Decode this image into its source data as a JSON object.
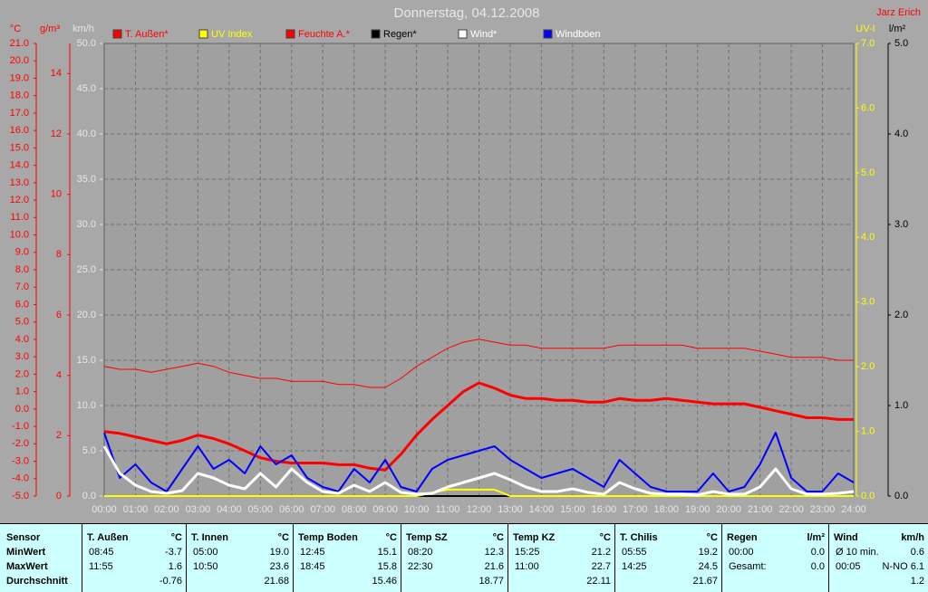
{
  "chart_data": {
    "type": "line",
    "title": "Donnerstag, 04.12.2008",
    "annotation": "Jarz Erich",
    "grid": true,
    "x": [
      0,
      0.5,
      1,
      1.5,
      2,
      2.5,
      3,
      3.5,
      4,
      4.5,
      5,
      5.5,
      6,
      6.5,
      7,
      7.5,
      8,
      8.5,
      9,
      9.5,
      10,
      10.5,
      11,
      11.5,
      12,
      12.5,
      13,
      13.5,
      14,
      14.5,
      15,
      15.5,
      16,
      16.5,
      17,
      17.5,
      18,
      18.5,
      19,
      19.5,
      20,
      20.5,
      21,
      21.5,
      22,
      22.5,
      23,
      23.5,
      24
    ],
    "xlim": [
      0,
      24
    ],
    "xticks": [
      {
        "value": 0,
        "label": "00:00"
      },
      {
        "value": 1,
        "label": "01:00"
      },
      {
        "value": 2,
        "label": "02:00"
      },
      {
        "value": 3,
        "label": "03:00"
      },
      {
        "value": 4,
        "label": "04:00"
      },
      {
        "value": 5,
        "label": "05:00"
      },
      {
        "value": 6,
        "label": "06:00"
      },
      {
        "value": 7,
        "label": "07:00"
      },
      {
        "value": 8,
        "label": "08:00"
      },
      {
        "value": 9,
        "label": "09:00"
      },
      {
        "value": 10,
        "label": "10:00"
      },
      {
        "value": 11,
        "label": "11:00"
      },
      {
        "value": 12,
        "label": "12:00"
      },
      {
        "value": 13,
        "label": "13:00"
      },
      {
        "value": 14,
        "label": "14:00"
      },
      {
        "value": 15,
        "label": "15:00"
      },
      {
        "value": 16,
        "label": "16:00"
      },
      {
        "value": 17,
        "label": "17:00"
      },
      {
        "value": 18,
        "label": "18:00"
      },
      {
        "value": 19,
        "label": "19:00"
      },
      {
        "value": 20,
        "label": "20:00"
      },
      {
        "value": 21,
        "label": "21:00"
      },
      {
        "value": 22,
        "label": "22:00"
      },
      {
        "value": 23,
        "label": "23:00"
      },
      {
        "value": 24,
        "label": "24:00"
      }
    ],
    "yaxes": [
      {
        "label": "°C",
        "color": "#ff0000",
        "side": "left",
        "ylim": [
          -5,
          21
        ],
        "yticks": [
          {
            "value": -5,
            "label": "-5.0"
          },
          {
            "value": -4,
            "label": "-4.0"
          },
          {
            "value": -3,
            "label": "-3.0"
          },
          {
            "value": -2,
            "label": "-2.0"
          },
          {
            "value": -1,
            "label": "-1.0"
          },
          {
            "value": 0,
            "label": "0.0"
          },
          {
            "value": 1,
            "label": "1.0"
          },
          {
            "value": 2,
            "label": "2.0"
          },
          {
            "value": 3,
            "label": "3.0"
          },
          {
            "value": 4,
            "label": "4.0"
          },
          {
            "value": 5,
            "label": "5.0"
          },
          {
            "value": 6,
            "label": "6.0"
          },
          {
            "value": 7,
            "label": "7.0"
          },
          {
            "value": 8,
            "label": "8.0"
          },
          {
            "value": 9,
            "label": "9.0"
          },
          {
            "value": 10,
            "label": "10.0"
          },
          {
            "value": 11,
            "label": "11.0"
          },
          {
            "value": 12,
            "label": "12.0"
          },
          {
            "value": 13,
            "label": "13.0"
          },
          {
            "value": 14,
            "label": "14.0"
          },
          {
            "value": 15,
            "label": "15.0"
          },
          {
            "value": 16,
            "label": "16.0"
          },
          {
            "value": 17,
            "label": "17.0"
          },
          {
            "value": 18,
            "label": "18.0"
          },
          {
            "value": 19,
            "label": "19.0"
          },
          {
            "value": 20,
            "label": "20.0"
          },
          {
            "value": 21,
            "label": "21.0"
          }
        ]
      },
      {
        "label": "g/m³",
        "color": "#ff0000",
        "side": "left",
        "ylim": [
          0,
          15
        ],
        "yticks": [
          0,
          2,
          4,
          6,
          8,
          10,
          12,
          14
        ]
      },
      {
        "label": "km/h",
        "color": "#e8e8e8",
        "side": "left",
        "ylim": [
          0,
          50
        ],
        "yticks": [
          {
            "value": 0,
            "label": "0.0"
          },
          {
            "value": 5,
            "label": "5.0"
          },
          {
            "value": 10,
            "label": "10.0"
          },
          {
            "value": 15,
            "label": "15.0"
          },
          {
            "value": 20,
            "label": "20.0"
          },
          {
            "value": 25,
            "label": "25.0"
          },
          {
            "value": 30,
            "label": "30.0"
          },
          {
            "value": 35,
            "label": "35.0"
          },
          {
            "value": 40,
            "label": "40.0"
          },
          {
            "value": 45,
            "label": "45.0"
          },
          {
            "value": 50,
            "label": "50.0"
          }
        ]
      },
      {
        "label": "UV-I",
        "color": "#ffff00",
        "side": "right",
        "ylim": [
          0,
          7
        ],
        "yticks": [
          {
            "value": 0,
            "label": "0.0"
          },
          {
            "value": 1,
            "label": "1.0"
          },
          {
            "value": 2,
            "label": "2.0"
          },
          {
            "value": 3,
            "label": "3.0"
          },
          {
            "value": 4,
            "label": "4.0"
          },
          {
            "value": 5,
            "label": "5.0"
          },
          {
            "value": 6,
            "label": "6.0"
          },
          {
            "value": 7,
            "label": "7.0"
          }
        ]
      },
      {
        "label": "l/m²",
        "color": "#000000",
        "side": "right",
        "ylim": [
          0,
          5
        ],
        "yticks": [
          {
            "value": 0,
            "label": "0.0"
          },
          {
            "value": 1,
            "label": "1.0"
          },
          {
            "value": 2,
            "label": "2.0"
          },
          {
            "value": 3,
            "label": "3.0"
          },
          {
            "value": 4,
            "label": "4.0"
          },
          {
            "value": 5,
            "label": "5.0"
          }
        ]
      }
    ],
    "series": [
      {
        "name": "T. Außen*",
        "color": "#ff0000",
        "axis": "°C",
        "line_width": 3,
        "values": [
          -1.3,
          -1.4,
          -1.6,
          -1.8,
          -2.0,
          -1.8,
          -1.5,
          -1.7,
          -2.0,
          -2.4,
          -2.8,
          -3.0,
          -3.1,
          -3.1,
          -3.1,
          -3.2,
          -3.2,
          -3.4,
          -3.5,
          -2.6,
          -1.5,
          -0.6,
          0.2,
          1.0,
          1.5,
          1.2,
          0.8,
          0.6,
          0.6,
          0.5,
          0.5,
          0.4,
          0.4,
          0.6,
          0.5,
          0.5,
          0.6,
          0.5,
          0.4,
          0.3,
          0.3,
          0.3,
          0.1,
          -0.1,
          -0.3,
          -0.5,
          -0.5,
          -0.6,
          -0.6
        ]
      },
      {
        "name": "UV Index",
        "color": "#ffff00",
        "axis": "UV-I",
        "line_width": 2,
        "values": [
          0,
          0,
          0,
          0,
          0,
          0,
          0,
          0,
          0,
          0,
          0,
          0,
          0,
          0,
          0,
          0,
          0,
          0,
          0,
          0,
          0,
          0.05,
          0.1,
          0.1,
          0.1,
          0.1,
          0,
          0,
          0,
          0,
          0,
          0,
          0,
          0,
          0,
          0,
          0,
          0,
          0,
          0,
          0,
          0,
          0,
          0,
          0,
          0,
          0,
          0,
          0
        ]
      },
      {
        "name": "Feuchte A.*",
        "color": "#ff0000",
        "axis": "g/m³",
        "line_width": 1,
        "values": [
          4.3,
          4.2,
          4.2,
          4.1,
          4.2,
          4.3,
          4.4,
          4.3,
          4.1,
          4.0,
          3.9,
          3.9,
          3.8,
          3.8,
          3.8,
          3.7,
          3.7,
          3.6,
          3.6,
          3.9,
          4.3,
          4.6,
          4.9,
          5.1,
          5.2,
          5.1,
          5.0,
          5.0,
          4.9,
          4.9,
          4.9,
          4.9,
          4.9,
          5.0,
          5.0,
          5.0,
          5.0,
          5.0,
          4.9,
          4.9,
          4.9,
          4.9,
          4.8,
          4.7,
          4.6,
          4.6,
          4.6,
          4.5,
          4.5
        ]
      },
      {
        "name": "Regen*",
        "color": "#000000",
        "axis": "l/m²",
        "line_width": 2,
        "values": [
          0,
          0,
          0,
          0,
          0,
          0,
          0,
          0,
          0,
          0,
          0,
          0,
          0,
          0,
          0,
          0,
          0,
          0,
          0,
          0,
          0,
          0,
          0,
          0,
          0,
          0,
          0,
          0,
          0,
          0,
          0,
          0,
          0,
          0,
          0,
          0,
          0,
          0,
          0,
          0,
          0,
          0,
          0,
          0,
          0,
          0,
          0,
          0,
          0
        ]
      },
      {
        "name": "Wind*",
        "color": "#ffffff",
        "axis": "km/h",
        "line_width": 3,
        "values": [
          5.5,
          2.5,
          1.2,
          0.5,
          0.3,
          0.6,
          2.5,
          2.0,
          1.2,
          0.8,
          2.5,
          1.0,
          3.0,
          1.5,
          0.5,
          0.3,
          1.2,
          0.5,
          1.5,
          0.4,
          0.2,
          0.3,
          1.0,
          1.5,
          2.0,
          2.5,
          1.8,
          1.0,
          0.5,
          0.5,
          0.8,
          0.4,
          0.2,
          1.5,
          0.8,
          0.3,
          0.2,
          0.2,
          0.1,
          0.5,
          0.2,
          0.2,
          1.0,
          3.0,
          0.8,
          0.2,
          0.2,
          0.3,
          0.5
        ]
      },
      {
        "name": "Windböen",
        "color": "#0000ff",
        "axis": "km/h",
        "line_width": 2,
        "values": [
          7.0,
          2.0,
          3.5,
          1.5,
          0.5,
          3.0,
          5.5,
          3.0,
          4.0,
          2.5,
          5.5,
          3.5,
          4.5,
          2.0,
          1.0,
          0.5,
          3.0,
          1.5,
          4.0,
          1.0,
          0.5,
          3.0,
          4.0,
          4.5,
          5.0,
          5.5,
          4.0,
          3.0,
          2.0,
          2.5,
          3.0,
          2.0,
          1.0,
          4.0,
          2.5,
          1.0,
          0.5,
          0.5,
          0.5,
          2.5,
          0.5,
          1.0,
          3.5,
          7.0,
          2.0,
          0.5,
          0.5,
          2.5,
          1.5
        ]
      }
    ]
  },
  "stats": {
    "row_labels": [
      "Sensor",
      "MinWert",
      "MaxWert",
      "Durchschnitt"
    ],
    "columns": [
      {
        "name": "T. Außen",
        "unit": "°C",
        "min": [
          "08:45",
          "-3.7"
        ],
        "max": [
          "11:55",
          "1.6"
        ],
        "avg": "-0.76"
      },
      {
        "name": "T. Innen",
        "unit": "°C",
        "min": [
          "05:00",
          "19.0"
        ],
        "max": [
          "10:50",
          "23.6"
        ],
        "avg": "21.68"
      },
      {
        "name": "Temp Boden",
        "unit": "°C",
        "min": [
          "12:45",
          "15.1"
        ],
        "max": [
          "18:45",
          "15.8"
        ],
        "avg": "15.46"
      },
      {
        "name": "Temp SZ",
        "unit": "°C",
        "min": [
          "08:20",
          "12.3"
        ],
        "max": [
          "22:30",
          "21.6"
        ],
        "avg": "18.77"
      },
      {
        "name": "Temp KZ",
        "unit": "°C",
        "min": [
          "15:25",
          "21.2"
        ],
        "max": [
          "11:00",
          "22.7"
        ],
        "avg": "22.11"
      },
      {
        "name": "T. Chilis",
        "unit": "°C",
        "min": [
          "05:55",
          "19.2"
        ],
        "max": [
          "14:25",
          "24.5"
        ],
        "avg": "21.67"
      },
      {
        "name": "Regen",
        "unit": "l/m²",
        "min": [
          "00:00",
          "0.0"
        ],
        "max": [
          "Gesamt:",
          "0.0"
        ]
      },
      {
        "name": "Wind",
        "unit": "km/h",
        "min": [
          "Ø 10 min.",
          "0.6"
        ],
        "max": [
          "00:05",
          "N-NO 6.1"
        ],
        "avg": "1.2"
      }
    ]
  }
}
